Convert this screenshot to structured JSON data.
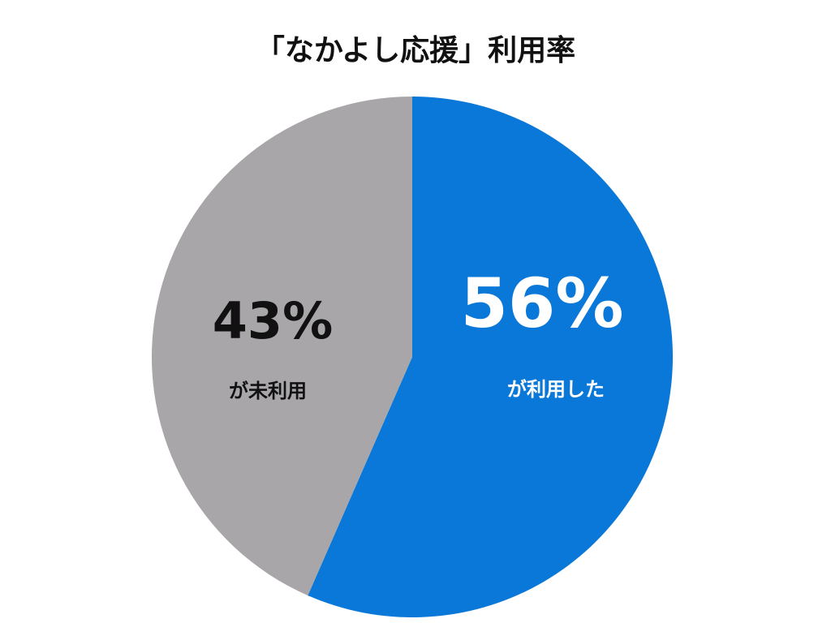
{
  "chart_data": {
    "type": "pie",
    "title": "「なかよし応援」利用率",
    "categories": [
      "が利用した",
      "が未利用"
    ],
    "values": [
      56,
      43
    ],
    "value_labels": [
      "56%",
      "43%"
    ],
    "colors": [
      "#0a78d8",
      "#a8a6a9"
    ]
  }
}
